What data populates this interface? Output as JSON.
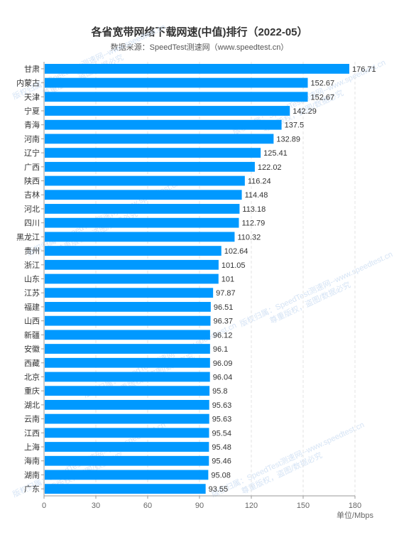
{
  "chart_data": {
    "type": "bar",
    "orientation": "horizontal",
    "title": "各省宽带网络下载网速(中值)排行（2022-05）",
    "subtitle": "数据来源：SpeedTest测速网（www.speedtest.cn）",
    "xlabel": "单位/Mbps",
    "ylabel": "",
    "xlim": [
      0,
      180
    ],
    "x_ticks": [
      "0",
      "30",
      "60",
      "90",
      "120",
      "150",
      "180"
    ],
    "grid": true,
    "bar_color": "#0099ff",
    "categories": [
      "甘肃",
      "内蒙古",
      "天津",
      "宁夏",
      "青海",
      "河南",
      "辽宁",
      "广西",
      "陕西",
      "吉林",
      "河北",
      "四川",
      "黑龙江",
      "贵州",
      "浙江",
      "山东",
      "江苏",
      "福建",
      "山西",
      "新疆",
      "安徽",
      "西藏",
      "北京",
      "重庆",
      "湖北",
      "云南",
      "江西",
      "上海",
      "海南",
      "湖南",
      "广东"
    ],
    "values": [
      176.71,
      152.67,
      152.67,
      142.29,
      137.5,
      132.89,
      125.41,
      122.02,
      116.24,
      114.48,
      113.18,
      112.79,
      110.32,
      102.64,
      101.05,
      101,
      97.87,
      96.51,
      96.37,
      96.12,
      96.1,
      96.09,
      96.04,
      95.8,
      95.63,
      95.63,
      95.54,
      95.48,
      95.46,
      95.08,
      93.55
    ],
    "value_labels": [
      "176.71",
      "152.67",
      "152.67",
      "142.29",
      "137.5",
      "132.89",
      "125.41",
      "122.02",
      "116.24",
      "114.48",
      "113.18",
      "112.79",
      "110.32",
      "102.64",
      "101.05",
      "101",
      "97.87",
      "96.51",
      "96.37",
      "96.12",
      "96.1",
      "96.09",
      "96.04",
      "95.8",
      "95.63",
      "95.63",
      "95.54",
      "95.48",
      "95.46",
      "95.08",
      "93.55"
    ]
  },
  "watermark": {
    "line1": "版权归属：SpeedTest测速网--www.speedtest.cn",
    "line2": "尊重版权，盗图/数据必究",
    "color": "#d6e4f5"
  }
}
